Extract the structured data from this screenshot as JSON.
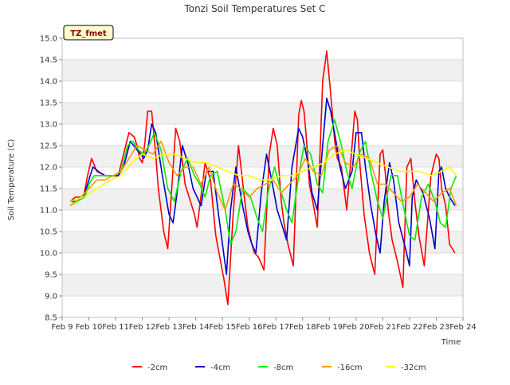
{
  "chart_data": {
    "type": "line",
    "title": "Tonzi Soil Temperatures Set C",
    "xlabel": "Time",
    "ylabel": "Soil Temperature (C)",
    "badge": "TZ_fmet",
    "ylim": [
      8.5,
      15.0
    ],
    "xlim": [
      0,
      15
    ],
    "grid": true,
    "legend_position": "bottom",
    "colors": {
      "badge_bg": "#ffffcc",
      "badge_text": "#8b0000",
      "band": "#f0f0f0"
    },
    "y_ticks": [
      "8.5",
      "9.0",
      "9.5",
      "10.0",
      "10.5",
      "11.0",
      "11.5",
      "12.0",
      "12.5",
      "13.0",
      "13.5",
      "14.0",
      "14.5",
      "15.0"
    ],
    "x_ticks": [
      "Feb 9",
      "Feb 10",
      "Feb 11",
      "Feb 12",
      "Feb 13",
      "Feb 14",
      "Feb 15",
      "Feb 16",
      "Feb 17",
      "Feb 18",
      "Feb 19",
      "Feb 20",
      "Feb 21",
      "Feb 22",
      "Feb 23",
      "Feb 24"
    ],
    "series": [
      {
        "name": "-2cm",
        "color": "#ff0000",
        "x": [
          0.3,
          0.5,
          0.8,
          0.95,
          1.1,
          1.3,
          1.6,
          1.9,
          2.1,
          2.3,
          2.5,
          2.7,
          2.8,
          2.9,
          3.0,
          3.1,
          3.2,
          3.35,
          3.5,
          3.6,
          3.8,
          3.95,
          4.1,
          4.25,
          4.4,
          4.6,
          4.8,
          4.95,
          5.05,
          5.15,
          5.35,
          5.55,
          5.75,
          5.9,
          6.05,
          6.2,
          6.4,
          6.6,
          6.8,
          6.95,
          7.1,
          7.2,
          7.35,
          7.55,
          7.75,
          7.9,
          8.05,
          8.2,
          8.3,
          8.45,
          8.65,
          8.85,
          8.95,
          9.05,
          9.15,
          9.25,
          9.35,
          9.55,
          9.75,
          9.9,
          10.05,
          10.2,
          10.3,
          10.45,
          10.65,
          10.85,
          10.95,
          11.05,
          11.15,
          11.3,
          11.5,
          11.7,
          11.9,
          12.0,
          12.1,
          12.2,
          12.35,
          12.55,
          12.75,
          12.9,
          13.05,
          13.2,
          13.35,
          13.55,
          13.8,
          14.0,
          14.1,
          14.2,
          14.35,
          14.5,
          14.7
        ],
        "y": [
          11.2,
          11.3,
          11.3,
          11.8,
          12.2,
          11.9,
          11.8,
          11.8,
          11.8,
          12.3,
          12.8,
          12.7,
          12.5,
          12.2,
          12.1,
          12.6,
          13.3,
          13.3,
          12.3,
          11.5,
          10.5,
          10.1,
          11.5,
          12.9,
          12.6,
          11.6,
          11.2,
          10.9,
          10.6,
          11.1,
          12.1,
          11.7,
          10.4,
          9.9,
          9.4,
          8.8,
          10.9,
          12.5,
          11.4,
          10.6,
          10.2,
          10.0,
          9.9,
          9.6,
          12.3,
          12.9,
          12.5,
          11.2,
          10.7,
          10.2,
          9.7,
          13.2,
          13.55,
          13.3,
          12.6,
          11.6,
          11.3,
          10.6,
          14.0,
          14.7,
          13.7,
          12.6,
          12.2,
          12.0,
          11.0,
          12.5,
          13.3,
          13.1,
          12.0,
          10.9,
          10.0,
          9.5,
          12.3,
          12.4,
          11.8,
          11.0,
          10.3,
          9.8,
          9.2,
          12.0,
          12.2,
          11.2,
          10.4,
          9.7,
          11.8,
          12.3,
          12.2,
          11.5,
          11.1,
          10.2,
          10.0
        ]
      },
      {
        "name": "-4cm",
        "color": "#0000cc",
        "x": [
          0.3,
          0.5,
          0.8,
          1.0,
          1.15,
          1.35,
          1.6,
          1.9,
          2.1,
          2.3,
          2.55,
          2.8,
          2.95,
          3.05,
          3.2,
          3.35,
          3.5,
          3.75,
          4.0,
          4.15,
          4.3,
          4.5,
          4.7,
          4.9,
          5.05,
          5.2,
          5.4,
          5.65,
          5.85,
          6.0,
          6.15,
          6.3,
          6.5,
          6.75,
          6.95,
          7.1,
          7.25,
          7.45,
          7.65,
          7.9,
          8.05,
          8.25,
          8.4,
          8.6,
          8.85,
          9.0,
          9.2,
          9.35,
          9.55,
          9.75,
          9.9,
          10.05,
          10.25,
          10.4,
          10.6,
          10.85,
          11.0,
          11.2,
          11.35,
          11.55,
          11.75,
          11.9,
          12.05,
          12.25,
          12.4,
          12.6,
          12.85,
          13.0,
          13.1,
          13.25,
          13.5,
          13.75,
          13.95,
          14.1,
          14.2,
          14.35,
          14.5,
          14.7
        ],
        "y": [
          11.2,
          11.2,
          11.3,
          11.7,
          12.0,
          11.9,
          11.8,
          11.8,
          11.8,
          12.0,
          12.6,
          12.4,
          12.3,
          12.2,
          12.4,
          13.0,
          12.8,
          11.8,
          10.9,
          10.7,
          11.4,
          12.5,
          12.1,
          11.5,
          11.3,
          11.1,
          11.9,
          11.9,
          10.9,
          10.2,
          9.5,
          11.0,
          12.0,
          11.1,
          10.5,
          10.2,
          10.0,
          11.4,
          12.3,
          11.5,
          11.0,
          10.6,
          10.3,
          12.0,
          12.9,
          12.7,
          12.1,
          11.4,
          11.0,
          12.5,
          13.6,
          13.3,
          12.6,
          12.0,
          11.5,
          11.9,
          12.8,
          12.8,
          12.0,
          11.1,
          10.4,
          10.0,
          11.2,
          12.1,
          11.7,
          10.7,
          10.1,
          9.7,
          11.3,
          11.7,
          11.4,
          10.8,
          10.1,
          11.9,
          12.0,
          11.5,
          11.3,
          11.1
        ]
      },
      {
        "name": "-8cm",
        "color": "#00ee00",
        "x": [
          0.3,
          0.55,
          0.85,
          1.0,
          1.2,
          1.45,
          1.7,
          1.95,
          2.2,
          2.45,
          2.65,
          2.85,
          3.05,
          3.25,
          3.45,
          3.7,
          3.95,
          4.2,
          4.45,
          4.7,
          4.95,
          5.15,
          5.35,
          5.55,
          5.8,
          6.1,
          6.3,
          6.5,
          6.75,
          7.05,
          7.3,
          7.5,
          7.7,
          7.95,
          8.2,
          8.4,
          8.6,
          8.85,
          9.05,
          9.3,
          9.55,
          9.75,
          9.95,
          10.2,
          10.45,
          10.65,
          10.85,
          11.1,
          11.35,
          11.55,
          11.8,
          12.0,
          12.3,
          12.55,
          12.8,
          13.0,
          13.2,
          13.45,
          13.7,
          13.95,
          14.15,
          14.35,
          14.55,
          14.75
        ],
        "y": [
          11.1,
          11.2,
          11.3,
          11.6,
          11.8,
          11.8,
          11.8,
          11.8,
          11.9,
          12.5,
          12.6,
          12.4,
          12.3,
          12.5,
          12.8,
          12.4,
          11.5,
          11.2,
          11.9,
          12.2,
          11.8,
          11.6,
          11.3,
          11.8,
          11.9,
          11.0,
          10.2,
          10.5,
          11.5,
          11.3,
          10.8,
          10.5,
          11.4,
          12.0,
          11.4,
          11.0,
          10.7,
          11.8,
          12.5,
          12.3,
          11.6,
          11.4,
          12.6,
          13.1,
          12.5,
          11.9,
          11.5,
          12.3,
          12.6,
          11.9,
          11.2,
          10.8,
          11.8,
          11.8,
          11.0,
          10.4,
          10.3,
          11.3,
          11.6,
          11.2,
          10.7,
          10.6,
          11.5,
          11.8
        ]
      },
      {
        "name": "-16cm",
        "color": "#ff9900",
        "x": [
          0.3,
          0.7,
          1.0,
          1.3,
          1.6,
          1.9,
          2.2,
          2.5,
          2.8,
          3.1,
          3.4,
          3.7,
          4.0,
          4.3,
          4.6,
          4.9,
          5.2,
          5.5,
          5.8,
          6.1,
          6.4,
          6.7,
          7.0,
          7.3,
          7.6,
          7.9,
          8.2,
          8.5,
          8.8,
          9.1,
          9.4,
          9.7,
          10.0,
          10.3,
          10.6,
          10.9,
          11.2,
          11.5,
          11.8,
          12.1,
          12.4,
          12.7,
          13.0,
          13.3,
          13.6,
          13.9,
          14.2,
          14.5,
          14.75
        ],
        "y": [
          11.1,
          11.3,
          11.5,
          11.7,
          11.7,
          11.8,
          11.9,
          12.2,
          12.5,
          12.4,
          12.3,
          12.6,
          12.1,
          11.8,
          12.0,
          12.0,
          11.6,
          12.0,
          11.4,
          11.0,
          11.6,
          11.5,
          11.3,
          11.5,
          11.6,
          11.7,
          11.4,
          11.6,
          11.8,
          12.2,
          11.9,
          11.8,
          12.4,
          12.5,
          12.1,
          12.0,
          12.3,
          12.2,
          11.6,
          11.6,
          11.4,
          11.2,
          11.3,
          11.6,
          11.4,
          11.2,
          11.4,
          11.5,
          11.1
        ]
      },
      {
        "name": "-32cm",
        "color": "#ffff00",
        "x": [
          0.3,
          0.8,
          1.3,
          1.8,
          2.2,
          2.6,
          3.0,
          3.4,
          3.8,
          4.2,
          4.6,
          5.0,
          5.4,
          5.8,
          6.2,
          6.6,
          7.0,
          7.4,
          7.8,
          8.2,
          8.6,
          9.0,
          9.4,
          9.8,
          10.2,
          10.6,
          11.0,
          11.4,
          11.8,
          12.2,
          12.6,
          13.0,
          13.4,
          13.8,
          14.2,
          14.5,
          14.75
        ],
        "y": [
          11.2,
          11.3,
          11.5,
          11.7,
          11.8,
          12.1,
          12.3,
          12.2,
          12.3,
          12.3,
          12.2,
          12.1,
          12.1,
          12.0,
          11.9,
          11.8,
          11.8,
          11.7,
          11.7,
          11.8,
          11.8,
          11.9,
          12.0,
          12.1,
          12.3,
          12.4,
          12.3,
          12.2,
          12.1,
          12.0,
          11.9,
          11.9,
          11.9,
          11.8,
          11.9,
          12.0,
          11.8
        ]
      }
    ]
  }
}
